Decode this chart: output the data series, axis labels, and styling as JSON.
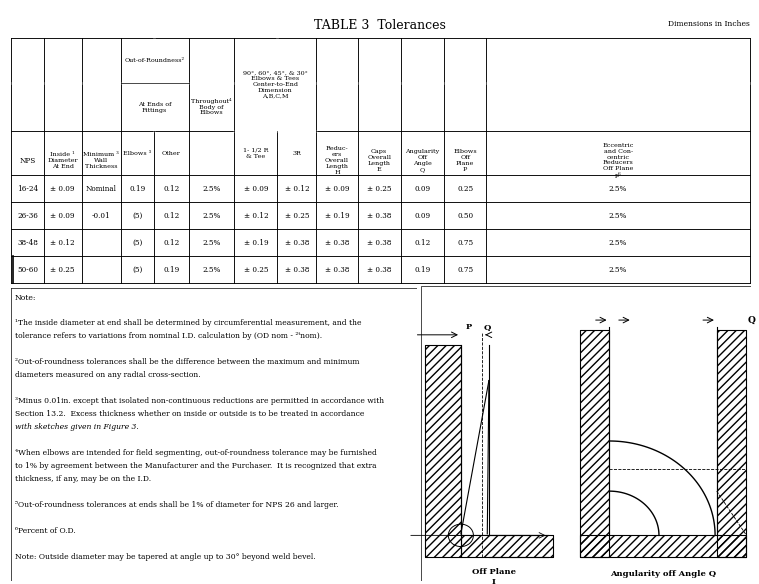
{
  "title": "TABLE 3  Tolerances",
  "dim_note": "Dimensions in Inches",
  "rows": [
    [
      "16-24",
      "± 0.09",
      "Nominal",
      "0.19",
      "0.12",
      "2.5%",
      "± 0.09",
      "± 0.12",
      "± 0.09",
      "± 0.25",
      "0.09",
      "0.25",
      "2.5%"
    ],
    [
      "26-36",
      "± 0.09",
      "-0.01",
      "(5)",
      "0.12",
      "2.5%",
      "± 0.12",
      "± 0.25",
      "± 0.19",
      "± 0.38",
      "0.09",
      "0.50",
      "2.5%"
    ],
    [
      "38-48",
      "± 0.12",
      "",
      "(5)",
      "0.12",
      "2.5%",
      "± 0.19",
      "± 0.38",
      "± 0.38",
      "± 0.38",
      "0.12",
      "0.75",
      "2.5%"
    ],
    [
      "50-60",
      "± 0.25",
      "",
      "(5)",
      "0.19",
      "2.5%",
      "± 0.25",
      "± 0.38",
      "± 0.38",
      "± 0.38",
      "0.19",
      "0.75",
      "2.5%"
    ]
  ],
  "bg_color": "#ffffff",
  "table_line_color": "#000000",
  "note_lines": [
    [
      "Note:",
      false
    ],
    [
      "",
      false
    ],
    [
      "¹The inside diameter at end shall be determined by circumferential measurement, and the",
      false
    ],
    [
      "tolerance refers to variations from nominal I.D. calculation by (OD nom - ²ᵗnom).",
      false
    ],
    [
      "",
      false
    ],
    [
      "²Out-of-roundness tolerances shall be the difference between the maximum and minimum",
      false
    ],
    [
      "diameters measured on any radial cross-section.",
      false
    ],
    [
      "",
      false
    ],
    [
      "³Minus 0.01in. except that isolated non-continuous reductions are permitted in accordance with",
      false
    ],
    [
      "Section 13.2.  Excess thickness whether on inside or outside is to be treated in accordance",
      false
    ],
    [
      "with sketches given in Figure 3.",
      true
    ],
    [
      "",
      false
    ],
    [
      "⁴When elbows are intended for field segmenting, out-of-roundness tolerance may be furnished",
      false
    ],
    [
      "to 1% by agreement between the Manufacturer and the Purchaser.  It is recognized that extra",
      false
    ],
    [
      "thickness, if any, may be on the I.D.",
      false
    ],
    [
      "",
      false
    ],
    [
      "⁵Out-of-roundness tolerances at ends shall be 1% of diameter for NPS 26 and larger.",
      false
    ],
    [
      "",
      false
    ],
    [
      "⁶Percent of O.D.",
      false
    ],
    [
      "",
      false
    ],
    [
      "Note: Outside diameter may be tapered at angle up to 30° beyond weld bevel.",
      false
    ]
  ]
}
